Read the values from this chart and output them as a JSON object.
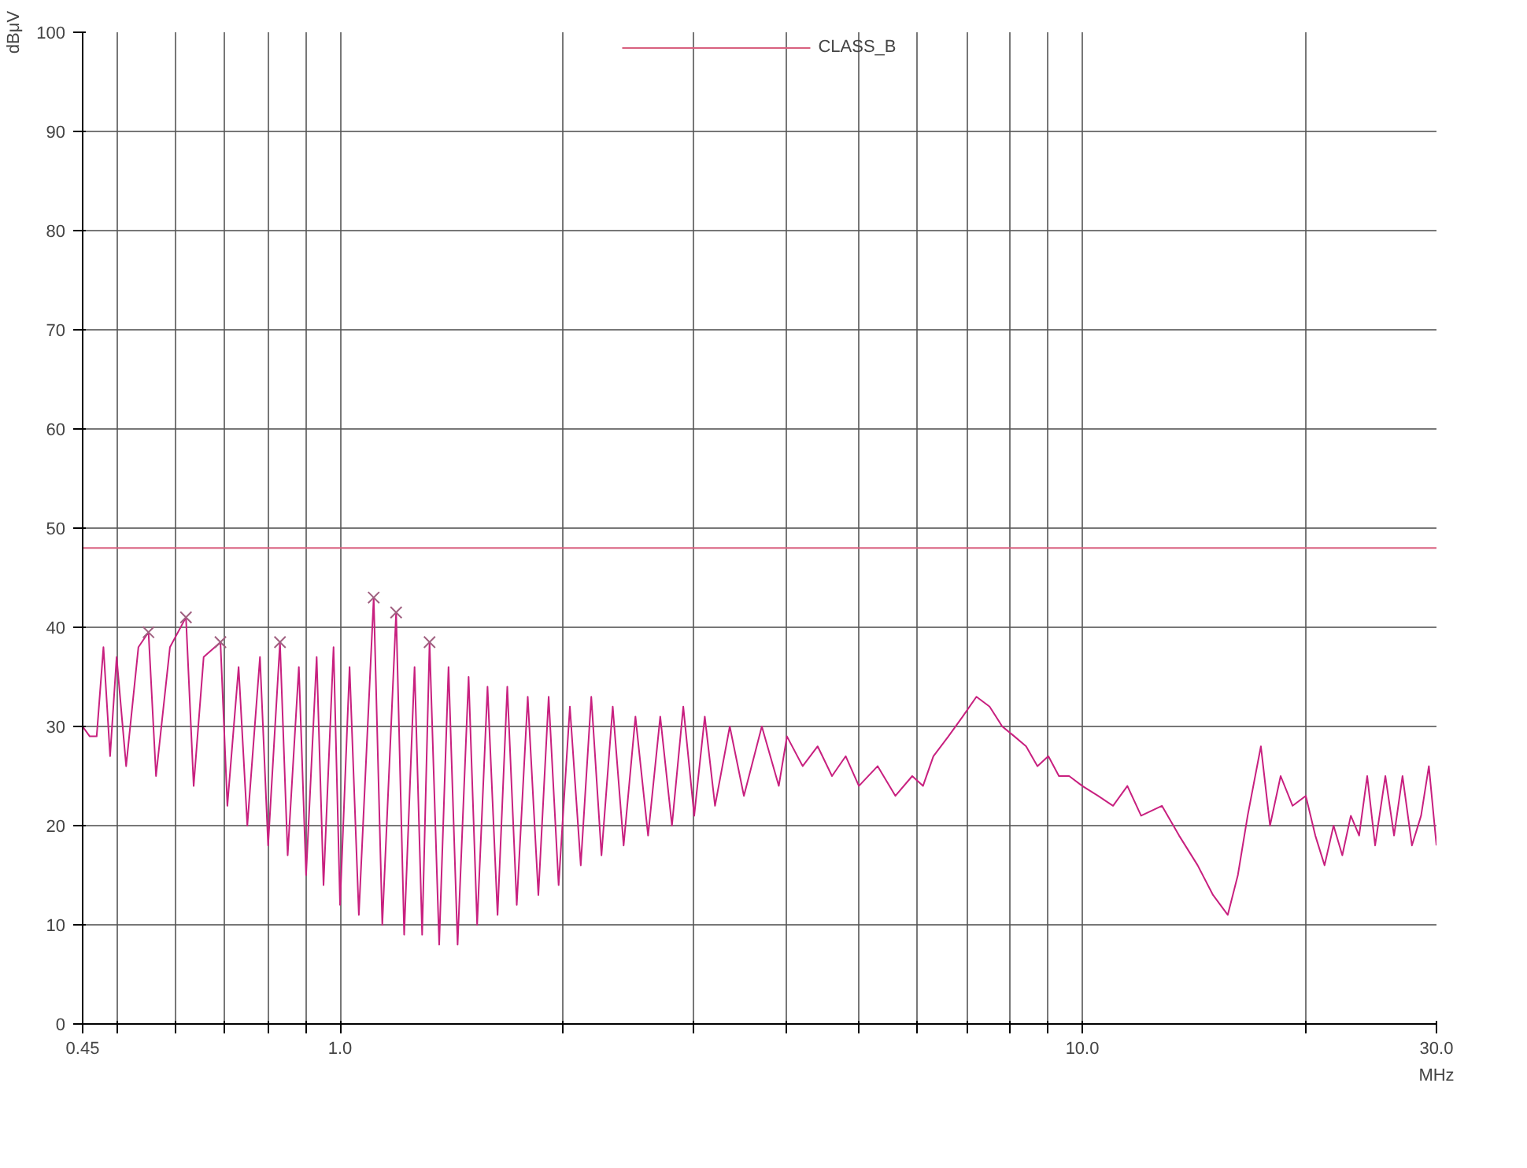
{
  "chart_data": {
    "type": "line",
    "xlabel": "MHz",
    "ylabel": "dBμV",
    "log": "x",
    "grid": true,
    "legend": "top",
    "xlim": [
      0.45,
      30
    ],
    "ylim": [
      0,
      100
    ],
    "xticks": [
      0.45,
      {
        "value": 0.5,
        "label": null
      },
      {
        "value": 0.6,
        "label": null
      },
      {
        "value": 0.7,
        "label": null
      },
      {
        "value": 0.8,
        "label": null
      },
      {
        "value": 0.9,
        "label": null
      },
      {
        "value": 1,
        "label": "1.0"
      },
      {
        "value": 2,
        "label": null
      },
      {
        "value": 3,
        "label": null
      },
      {
        "value": 4,
        "label": null
      },
      {
        "value": 5,
        "label": null
      },
      {
        "value": 6,
        "label": null
      },
      {
        "value": 7,
        "label": null
      },
      {
        "value": 8,
        "label": null
      },
      {
        "value": 9,
        "label": null
      },
      {
        "value": 10,
        "label": "10.0"
      },
      {
        "value": 20,
        "label": null
      },
      {
        "value": 30,
        "label": "30.0"
      }
    ],
    "yticks": [
      0,
      10,
      20,
      30,
      40,
      50,
      60,
      70,
      80,
      90,
      100
    ],
    "series": [
      {
        "color": "#c8207f",
        "x": [
          0.45,
          0.46,
          0.47,
          0.48,
          0.49,
          0.5,
          0.515,
          0.535,
          0.552,
          0.565,
          0.59,
          0.62,
          0.635,
          0.655,
          0.69,
          0.705,
          0.73,
          0.75,
          0.78,
          0.8,
          0.83,
          0.85,
          0.88,
          0.9,
          0.93,
          0.95,
          0.98,
          1.0,
          1.03,
          1.06,
          1.11,
          1.14,
          1.19,
          1.22,
          1.26,
          1.29,
          1.32,
          1.36,
          1.4,
          1.44,
          1.49,
          1.53,
          1.58,
          1.63,
          1.68,
          1.73,
          1.79,
          1.85,
          1.91,
          1.97,
          2.04,
          2.11,
          2.18,
          2.25,
          2.33,
          2.41,
          2.5,
          2.6,
          2.7,
          2.8,
          2.9,
          3.0,
          3.1,
          3.2,
          3.35,
          3.5,
          3.7,
          3.9,
          4.0,
          4.2,
          4.4,
          4.6,
          4.8,
          5.0,
          5.3,
          5.6,
          5.9,
          6.1,
          6.3,
          6.6,
          6.9,
          7.2,
          7.5,
          7.8,
          8.1,
          8.4,
          8.7,
          9.0,
          9.3,
          9.6,
          10.0,
          10.5,
          11.0,
          11.5,
          12.0,
          12.8,
          13.5,
          14.3,
          15.0,
          15.7,
          16.2,
          16.7,
          17.4,
          17.9,
          18.5,
          19.2,
          20.0,
          20.6,
          21.2,
          21.8,
          22.4,
          23.0,
          23.6,
          24.2,
          24.8,
          25.6,
          26.3,
          27.0,
          27.8,
          28.6,
          29.3,
          30
        ],
        "values": [
          30,
          29,
          29,
          38,
          27,
          37,
          26,
          38,
          39.5,
          25,
          38,
          41,
          24,
          37,
          38.5,
          22,
          36,
          20,
          37,
          18,
          38.5,
          17,
          36,
          15,
          37,
          14,
          38,
          12,
          36,
          11,
          43,
          10,
          41.5,
          9,
          36,
          9,
          38.5,
          8,
          36,
          8,
          35,
          10,
          34,
          11,
          34,
          12,
          33,
          13,
          33,
          14,
          32,
          16,
          33,
          17,
          32,
          18,
          31,
          19,
          31,
          20,
          32,
          21,
          31,
          22,
          30,
          23,
          30,
          24,
          29,
          26,
          28,
          25,
          27,
          24,
          26,
          23,
          25,
          24,
          27,
          29,
          31,
          33,
          32,
          30,
          29,
          28,
          26,
          27,
          25,
          25,
          24,
          23,
          22,
          24,
          21,
          22,
          19,
          16,
          13,
          11,
          15,
          21,
          28,
          20,
          25,
          22,
          23,
          19,
          16,
          20,
          17,
          21,
          19,
          25,
          18,
          25,
          19,
          25,
          18,
          21,
          26,
          18
        ]
      },
      {
        "name": "CLASS_B",
        "color": "#d8607f",
        "x": [
          0.45,
          30
        ],
        "values": [
          48,
          48
        ]
      },
      {
        "type": "scatter",
        "marker": "cross",
        "color": "#a06080",
        "x": [
          0.552,
          0.62,
          0.69,
          0.83,
          1.11,
          1.19,
          1.32
        ],
        "values": [
          39.5,
          41,
          38.5,
          38.5,
          43,
          41.5,
          38.5
        ]
      }
    ]
  }
}
